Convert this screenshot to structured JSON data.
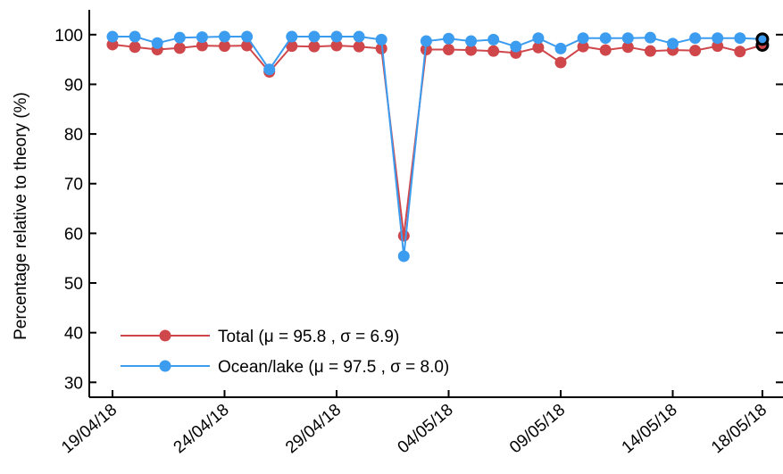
{
  "chart_data": {
    "type": "line",
    "title": "",
    "xlabel": "",
    "ylabel": "Percentage relative to theory (%)",
    "ylim": [
      27,
      105
    ],
    "yticks": [
      30,
      40,
      50,
      60,
      70,
      80,
      90,
      100
    ],
    "x_range": [
      "2018-04-19",
      "2018-05-19"
    ],
    "xticks": [
      {
        "date": "2018-04-19",
        "label": "19/04/18"
      },
      {
        "date": "2018-04-24",
        "label": "24/04/18"
      },
      {
        "date": "2018-04-29",
        "label": "29/04/18"
      },
      {
        "date": "2018-05-04",
        "label": "04/05/18"
      },
      {
        "date": "2018-05-09",
        "label": "09/05/18"
      },
      {
        "date": "2018-05-14",
        "label": "14/05/18"
      },
      {
        "date": "2018-05-18",
        "label": "18/05/18"
      }
    ],
    "grid": false,
    "legend_position": "bottom-left",
    "series": [
      {
        "name": "Total (μ = 95.8 , σ = 6.9)",
        "color": "#d0474b",
        "points": [
          {
            "x": "2018-04-19",
            "y": 98.0
          },
          {
            "x": "2018-04-20",
            "y": 97.5
          },
          {
            "x": "2018-04-21",
            "y": 97.0
          },
          {
            "x": "2018-04-22",
            "y": 97.3
          },
          {
            "x": "2018-04-23",
            "y": 97.8
          },
          {
            "x": "2018-04-24",
            "y": 97.7
          },
          {
            "x": "2018-04-25",
            "y": 97.8
          },
          {
            "x": "2018-04-26",
            "y": 92.5
          },
          {
            "x": "2018-04-27",
            "y": 97.7
          },
          {
            "x": "2018-04-28",
            "y": 97.6
          },
          {
            "x": "2018-04-29",
            "y": 97.8
          },
          {
            "x": "2018-04-30",
            "y": 97.6
          },
          {
            "x": "2018-05-01",
            "y": 97.2
          },
          {
            "x": "2018-05-02",
            "y": 59.5
          },
          {
            "x": "2018-05-03",
            "y": 97.0
          },
          {
            "x": "2018-05-04",
            "y": 97.0
          },
          {
            "x": "2018-05-05",
            "y": 96.9
          },
          {
            "x": "2018-05-06",
            "y": 96.7
          },
          {
            "x": "2018-05-07",
            "y": 96.3
          },
          {
            "x": "2018-05-08",
            "y": 97.4
          },
          {
            "x": "2018-05-09",
            "y": 94.4
          },
          {
            "x": "2018-05-10",
            "y": 97.6
          },
          {
            "x": "2018-05-11",
            "y": 96.9
          },
          {
            "x": "2018-05-12",
            "y": 97.5
          },
          {
            "x": "2018-05-13",
            "y": 96.7
          },
          {
            "x": "2018-05-14",
            "y": 96.9
          },
          {
            "x": "2018-05-15",
            "y": 96.8
          },
          {
            "x": "2018-05-16",
            "y": 97.7
          },
          {
            "x": "2018-05-17",
            "y": 96.6
          },
          {
            "x": "2018-05-18",
            "y": 97.9
          }
        ]
      },
      {
        "name": "Ocean/lake (μ = 97.5 , σ = 8.0)",
        "color": "#3b9cf0",
        "points": [
          {
            "x": "2018-04-19",
            "y": 99.6
          },
          {
            "x": "2018-04-20",
            "y": 99.6
          },
          {
            "x": "2018-04-21",
            "y": 98.3
          },
          {
            "x": "2018-04-22",
            "y": 99.4
          },
          {
            "x": "2018-04-23",
            "y": 99.5
          },
          {
            "x": "2018-04-24",
            "y": 99.6
          },
          {
            "x": "2018-04-25",
            "y": 99.6
          },
          {
            "x": "2018-04-26",
            "y": 93.0
          },
          {
            "x": "2018-04-27",
            "y": 99.6
          },
          {
            "x": "2018-04-28",
            "y": 99.6
          },
          {
            "x": "2018-04-29",
            "y": 99.6
          },
          {
            "x": "2018-04-30",
            "y": 99.6
          },
          {
            "x": "2018-05-01",
            "y": 99.0
          },
          {
            "x": "2018-05-02",
            "y": 55.4
          },
          {
            "x": "2018-05-03",
            "y": 98.7
          },
          {
            "x": "2018-05-04",
            "y": 99.2
          },
          {
            "x": "2018-05-05",
            "y": 98.7
          },
          {
            "x": "2018-05-06",
            "y": 99.0
          },
          {
            "x": "2018-05-07",
            "y": 97.6
          },
          {
            "x": "2018-05-08",
            "y": 99.3
          },
          {
            "x": "2018-05-09",
            "y": 97.2
          },
          {
            "x": "2018-05-10",
            "y": 99.3
          },
          {
            "x": "2018-05-11",
            "y": 99.3
          },
          {
            "x": "2018-05-12",
            "y": 99.3
          },
          {
            "x": "2018-05-13",
            "y": 99.4
          },
          {
            "x": "2018-05-14",
            "y": 98.2
          },
          {
            "x": "2018-05-15",
            "y": 99.3
          },
          {
            "x": "2018-05-16",
            "y": 99.3
          },
          {
            "x": "2018-05-17",
            "y": 99.3
          },
          {
            "x": "2018-05-18",
            "y": 99.1
          }
        ]
      }
    ],
    "highlighted_points": [
      {
        "series": 0,
        "x": "2018-05-18",
        "y": 97.9,
        "outline_color": "#000000"
      },
      {
        "series": 1,
        "x": "2018-05-18",
        "y": 99.1,
        "outline_color": "#000000"
      }
    ]
  }
}
